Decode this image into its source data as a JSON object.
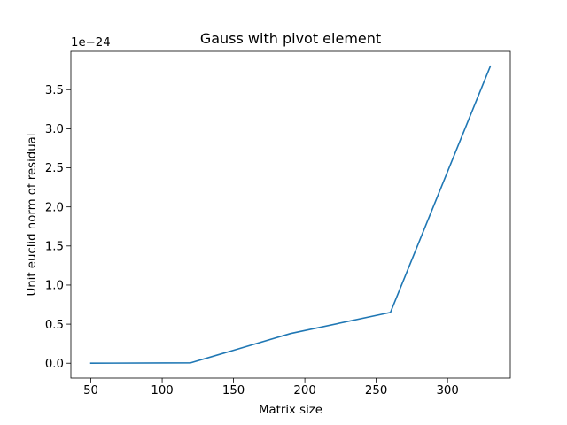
{
  "chart_data": {
    "type": "line",
    "title": "Gauss with pivot element",
    "xlabel": "Matrix size",
    "ylabel": "Unit euclid norm of residual",
    "offset_label": "1e−24",
    "xlim": [
      36,
      344
    ],
    "ylim": [
      -0.19,
      3.99
    ],
    "x_ticks": [
      50,
      100,
      150,
      200,
      250,
      300
    ],
    "x_tick_labels": [
      "50",
      "100",
      "150",
      "200",
      "250",
      "300"
    ],
    "y_ticks": [
      0.0,
      0.5,
      1.0,
      1.5,
      2.0,
      2.5,
      3.0,
      3.5
    ],
    "y_tick_labels": [
      "0.0",
      "0.5",
      "1.0",
      "1.5",
      "2.0",
      "2.5",
      "3.0",
      "3.5"
    ],
    "grid": false,
    "legend": "none",
    "series": [
      {
        "color": "#1f77b4",
        "x": [
          50,
          120,
          190,
          260,
          330
        ],
        "y": [
          0.0,
          0.005,
          0.38,
          0.65,
          3.8
        ]
      }
    ]
  }
}
